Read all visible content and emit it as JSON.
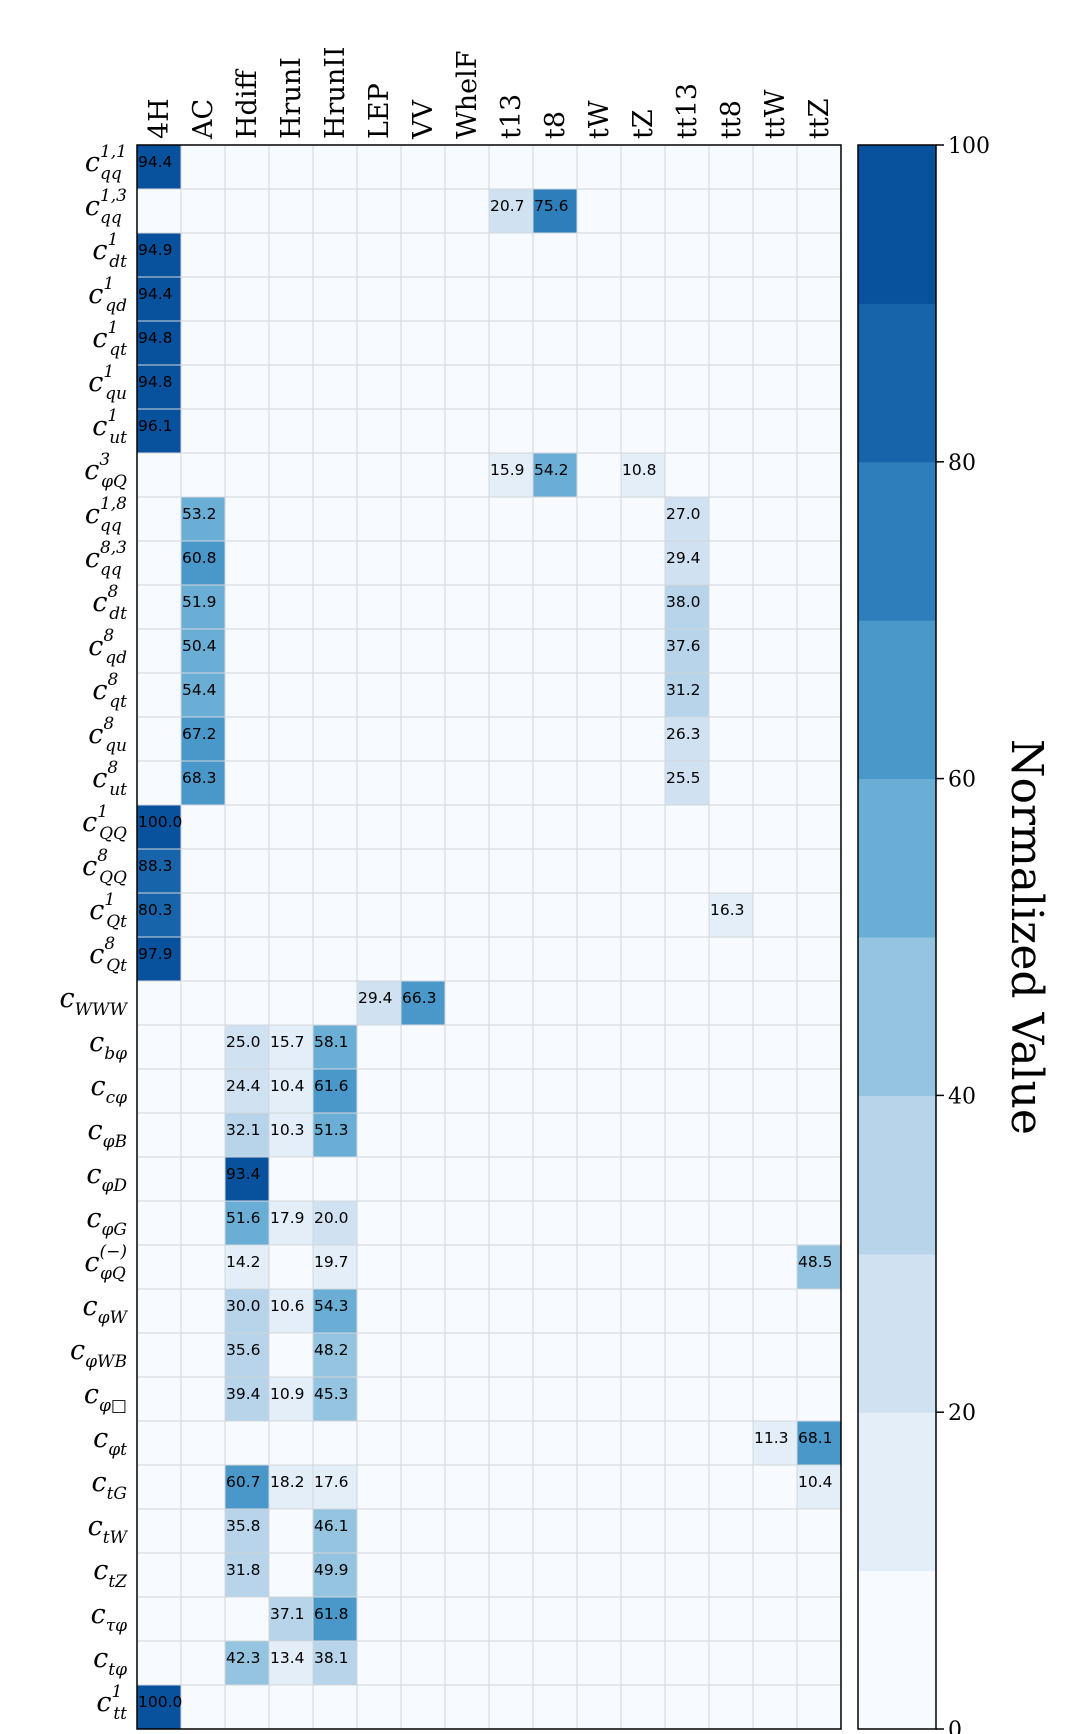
{
  "chart_data": {
    "type": "heatmap",
    "columns": [
      "4H",
      "AC",
      "Hdiff",
      "HrunI",
      "HrunII",
      "LEP",
      "VV",
      "WhelF",
      "t13",
      "t8",
      "tW",
      "tZ",
      "tt13",
      "tt8",
      "ttW",
      "ttZ"
    ],
    "rows": [
      {
        "base": "c",
        "sub": "qq",
        "sup": "1,1"
      },
      {
        "base": "c",
        "sub": "qq",
        "sup": "1,3"
      },
      {
        "base": "c",
        "sub": "dt",
        "sup": "1"
      },
      {
        "base": "c",
        "sub": "qd",
        "sup": "1"
      },
      {
        "base": "c",
        "sub": "qt",
        "sup": "1"
      },
      {
        "base": "c",
        "sub": "qu",
        "sup": "1"
      },
      {
        "base": "c",
        "sub": "ut",
        "sup": "1"
      },
      {
        "base": "c",
        "sub": "φQ",
        "sup": "3"
      },
      {
        "base": "c",
        "sub": "qq",
        "sup": "1,8"
      },
      {
        "base": "c",
        "sub": "qq",
        "sup": "8,3"
      },
      {
        "base": "c",
        "sub": "dt",
        "sup": "8"
      },
      {
        "base": "c",
        "sub": "qd",
        "sup": "8"
      },
      {
        "base": "c",
        "sub": "qt",
        "sup": "8"
      },
      {
        "base": "c",
        "sub": "qu",
        "sup": "8"
      },
      {
        "base": "c",
        "sub": "ut",
        "sup": "8"
      },
      {
        "base": "c",
        "sub": "QQ",
        "sup": "1"
      },
      {
        "base": "c",
        "sub": "QQ",
        "sup": "8"
      },
      {
        "base": "c",
        "sub": "Qt",
        "sup": "1"
      },
      {
        "base": "c",
        "sub": "Qt",
        "sup": "8"
      },
      {
        "base": "c",
        "sub": "WWW",
        "sup": ""
      },
      {
        "base": "c",
        "sub": "bφ",
        "sup": ""
      },
      {
        "base": "c",
        "sub": "cφ",
        "sup": ""
      },
      {
        "base": "c",
        "sub": "φB",
        "sup": ""
      },
      {
        "base": "c",
        "sub": "φD",
        "sup": ""
      },
      {
        "base": "c",
        "sub": "φG",
        "sup": ""
      },
      {
        "base": "c",
        "sub": "φQ",
        "sup": "(−)"
      },
      {
        "base": "c",
        "sub": "φW",
        "sup": ""
      },
      {
        "base": "c",
        "sub": "φWB",
        "sup": ""
      },
      {
        "base": "c",
        "sub": "φ□",
        "sup": ""
      },
      {
        "base": "c",
        "sub": "φt",
        "sup": ""
      },
      {
        "base": "c",
        "sub": "tG",
        "sup": ""
      },
      {
        "base": "c",
        "sub": "tW",
        "sup": ""
      },
      {
        "base": "c",
        "sub": "tZ",
        "sup": ""
      },
      {
        "base": "c",
        "sub": "τφ",
        "sup": ""
      },
      {
        "base": "c",
        "sub": "tφ",
        "sup": ""
      },
      {
        "base": "c",
        "sub": "tt",
        "sup": "1"
      }
    ],
    "values": [
      [
        94.4,
        0,
        0,
        0,
        0,
        0,
        0,
        0,
        0,
        0,
        0,
        0,
        0,
        0,
        0,
        0
      ],
      [
        0,
        0,
        0,
        0,
        0,
        0,
        0,
        0,
        20.7,
        75.6,
        0,
        0,
        0,
        0,
        0,
        0
      ],
      [
        94.9,
        0,
        0,
        0,
        0,
        0,
        0,
        0,
        0,
        0,
        0,
        0,
        0,
        0,
        0,
        0
      ],
      [
        94.4,
        0,
        0,
        0,
        0,
        0,
        0,
        0,
        0,
        0,
        0,
        0,
        0,
        0,
        0,
        0
      ],
      [
        94.8,
        0,
        0,
        0,
        0,
        0,
        0,
        0,
        0,
        0,
        0,
        0,
        0,
        0,
        0,
        0
      ],
      [
        94.8,
        0,
        0,
        0,
        0,
        0,
        0,
        0,
        0,
        0,
        0,
        0,
        0,
        0,
        0,
        0
      ],
      [
        96.1,
        0,
        0,
        0,
        0,
        0,
        0,
        0,
        0,
        0,
        0,
        0,
        0,
        0,
        0,
        0
      ],
      [
        0,
        0,
        0,
        0,
        0,
        0,
        0,
        0,
        15.9,
        54.2,
        0,
        10.8,
        0,
        0,
        0,
        0
      ],
      [
        0,
        53.2,
        0,
        0,
        0,
        0,
        0,
        0,
        0,
        0,
        0,
        0,
        27.0,
        0,
        0,
        0
      ],
      [
        0,
        60.8,
        0,
        0,
        0,
        0,
        0,
        0,
        0,
        0,
        0,
        0,
        29.4,
        0,
        0,
        0
      ],
      [
        0,
        51.9,
        0,
        0,
        0,
        0,
        0,
        0,
        0,
        0,
        0,
        0,
        38.0,
        0,
        0,
        0
      ],
      [
        0,
        50.4,
        0,
        0,
        0,
        0,
        0,
        0,
        0,
        0,
        0,
        0,
        37.6,
        0,
        0,
        0
      ],
      [
        0,
        54.4,
        0,
        0,
        0,
        0,
        0,
        0,
        0,
        0,
        0,
        0,
        31.2,
        0,
        0,
        0
      ],
      [
        0,
        67.2,
        0,
        0,
        0,
        0,
        0,
        0,
        0,
        0,
        0,
        0,
        26.3,
        0,
        0,
        0
      ],
      [
        0,
        68.3,
        0,
        0,
        0,
        0,
        0,
        0,
        0,
        0,
        0,
        0,
        25.5,
        0,
        0,
        0
      ],
      [
        100.0,
        0,
        0,
        0,
        0,
        0,
        0,
        0,
        0,
        0,
        0,
        0,
        0,
        0,
        0,
        0
      ],
      [
        88.3,
        0,
        0,
        0,
        0,
        0,
        0,
        0,
        0,
        0,
        0,
        0,
        0,
        0,
        0,
        0
      ],
      [
        80.3,
        0,
        0,
        0,
        0,
        0,
        0,
        0,
        0,
        0,
        0,
        0,
        0,
        16.3,
        0,
        0
      ],
      [
        97.9,
        0,
        0,
        0,
        0,
        0,
        0,
        0,
        0,
        0,
        0,
        0,
        0,
        0,
        0,
        0
      ],
      [
        0,
        0,
        0,
        0,
        0,
        29.4,
        66.3,
        0,
        0,
        0,
        0,
        0,
        0,
        0,
        0,
        0
      ],
      [
        0,
        0,
        25.0,
        15.7,
        58.1,
        0,
        0,
        0,
        0,
        0,
        0,
        0,
        0,
        0,
        0,
        0
      ],
      [
        0,
        0,
        24.4,
        10.4,
        61.6,
        0,
        0,
        0,
        0,
        0,
        0,
        0,
        0,
        0,
        0,
        0
      ],
      [
        0,
        0,
        32.1,
        10.3,
        51.3,
        0,
        0,
        0,
        0,
        0,
        0,
        0,
        0,
        0,
        0,
        0
      ],
      [
        0,
        0,
        93.4,
        0,
        0,
        0,
        0,
        0,
        0,
        0,
        0,
        0,
        0,
        0,
        0,
        0
      ],
      [
        0,
        0,
        51.6,
        17.9,
        20.0,
        0,
        0,
        0,
        0,
        0,
        0,
        0,
        0,
        0,
        0,
        0
      ],
      [
        0,
        0,
        14.2,
        0,
        19.7,
        0,
        0,
        0,
        0,
        0,
        0,
        0,
        0,
        0,
        0,
        48.5
      ],
      [
        0,
        0,
        30.0,
        10.6,
        54.3,
        0,
        0,
        0,
        0,
        0,
        0,
        0,
        0,
        0,
        0,
        0
      ],
      [
        0,
        0,
        35.6,
        0,
        48.2,
        0,
        0,
        0,
        0,
        0,
        0,
        0,
        0,
        0,
        0,
        0
      ],
      [
        0,
        0,
        39.4,
        10.9,
        45.3,
        0,
        0,
        0,
        0,
        0,
        0,
        0,
        0,
        0,
        0,
        0
      ],
      [
        0,
        0,
        0,
        0,
        0,
        0,
        0,
        0,
        0,
        0,
        0,
        0,
        0,
        0,
        11.3,
        68.1
      ],
      [
        0,
        0,
        60.7,
        18.2,
        17.6,
        0,
        0,
        0,
        0,
        0,
        0,
        0,
        0,
        0,
        0,
        10.4
      ],
      [
        0,
        0,
        35.8,
        0,
        46.1,
        0,
        0,
        0,
        0,
        0,
        0,
        0,
        0,
        0,
        0,
        0
      ],
      [
        0,
        0,
        31.8,
        0,
        49.9,
        0,
        0,
        0,
        0,
        0,
        0,
        0,
        0,
        0,
        0,
        0
      ],
      [
        0,
        0,
        0,
        37.1,
        61.8,
        0,
        0,
        0,
        0,
        0,
        0,
        0,
        0,
        0,
        0,
        0
      ],
      [
        0,
        0,
        42.3,
        13.4,
        38.1,
        0,
        0,
        0,
        0,
        0,
        0,
        0,
        0,
        0,
        0,
        0
      ],
      [
        100.0,
        0,
        0,
        0,
        0,
        0,
        0,
        0,
        0,
        0,
        0,
        0,
        0,
        0,
        0,
        0
      ]
    ],
    "zlim": [
      0,
      100
    ],
    "colorbar": {
      "label": "Normalized Value",
      "ticks": [
        0,
        20,
        40,
        60,
        80,
        100
      ],
      "levels": 10,
      "colors": [
        "#f7fbff",
        "#e3eef9",
        "#d0e1f2",
        "#b7d4ea",
        "#94c4df",
        "#6aaed6",
        "#4a98c9",
        "#2e7ebc",
        "#1764ab",
        "#08519c"
      ]
    },
    "label_threshold": 10,
    "grid": true,
    "legend": "right"
  }
}
